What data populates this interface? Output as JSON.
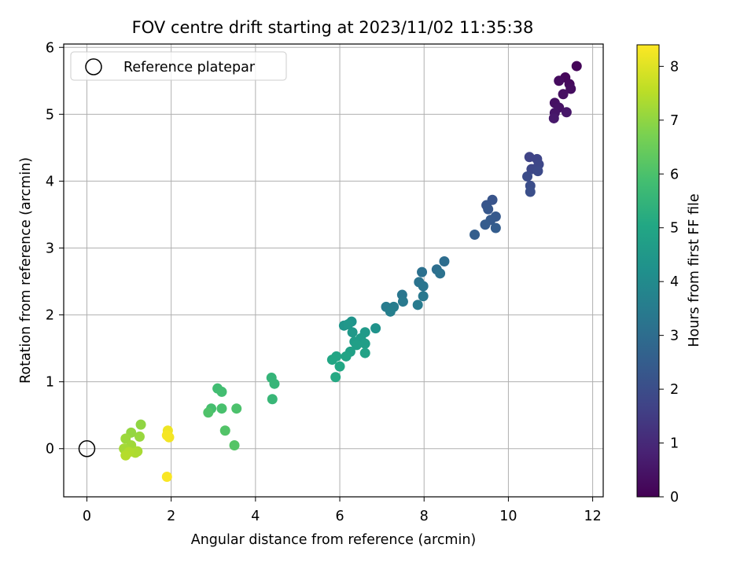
{
  "chart_data": {
    "type": "scatter",
    "title": "FOV centre drift starting at 2023/11/02 11:35:38",
    "xlabel": "Angular distance from reference (arcmin)",
    "ylabel": "Rotation from reference (arcmin)",
    "xlim": [
      -0.55,
      12.25
    ],
    "ylim": [
      -0.72,
      6.05
    ],
    "xticks": [
      0,
      2,
      4,
      6,
      8,
      10,
      12
    ],
    "yticks": [
      0,
      1,
      2,
      3,
      4,
      5,
      6
    ],
    "grid": true,
    "legend": {
      "position": "upper-left",
      "entries": [
        "Reference platepar"
      ]
    },
    "reference_point": {
      "x": 0,
      "y": 0,
      "marker": "open-circle"
    },
    "colorbar": {
      "label": "Hours from first FF file",
      "colormap": "viridis",
      "range": [
        0,
        8.4
      ],
      "ticks": [
        0,
        1,
        2,
        3,
        4,
        5,
        6,
        7,
        8
      ]
    },
    "points": [
      {
        "x": 11.62,
        "y": 5.72,
        "t": 0.1
      },
      {
        "x": 11.35,
        "y": 5.55,
        "t": 0.15
      },
      {
        "x": 11.45,
        "y": 5.45,
        "t": 0.2
      },
      {
        "x": 11.2,
        "y": 5.5,
        "t": 0.25
      },
      {
        "x": 11.48,
        "y": 5.38,
        "t": 0.3
      },
      {
        "x": 11.3,
        "y": 5.3,
        "t": 0.35
      },
      {
        "x": 11.1,
        "y": 5.17,
        "t": 0.4
      },
      {
        "x": 11.2,
        "y": 5.1,
        "t": 0.45
      },
      {
        "x": 11.1,
        "y": 5.02,
        "t": 0.5
      },
      {
        "x": 11.38,
        "y": 5.03,
        "t": 0.55
      },
      {
        "x": 11.08,
        "y": 4.94,
        "t": 0.6
      },
      {
        "x": 10.5,
        "y": 4.36,
        "t": 1.7
      },
      {
        "x": 10.68,
        "y": 4.33,
        "t": 1.75
      },
      {
        "x": 10.72,
        "y": 4.25,
        "t": 1.8
      },
      {
        "x": 10.55,
        "y": 4.18,
        "t": 1.85
      },
      {
        "x": 10.7,
        "y": 4.15,
        "t": 1.9
      },
      {
        "x": 10.45,
        "y": 4.07,
        "t": 1.95
      },
      {
        "x": 10.52,
        "y": 3.93,
        "t": 2.0
      },
      {
        "x": 10.52,
        "y": 3.84,
        "t": 2.05
      },
      {
        "x": 9.62,
        "y": 3.72,
        "t": 2.2
      },
      {
        "x": 9.48,
        "y": 3.64,
        "t": 2.25
      },
      {
        "x": 9.52,
        "y": 3.58,
        "t": 2.3
      },
      {
        "x": 9.7,
        "y": 3.47,
        "t": 2.35
      },
      {
        "x": 9.58,
        "y": 3.42,
        "t": 2.4
      },
      {
        "x": 9.45,
        "y": 3.35,
        "t": 2.45
      },
      {
        "x": 9.7,
        "y": 3.3,
        "t": 2.5
      },
      {
        "x": 9.2,
        "y": 3.2,
        "t": 2.55
      },
      {
        "x": 8.48,
        "y": 2.8,
        "t": 3.0
      },
      {
        "x": 8.3,
        "y": 2.68,
        "t": 3.05
      },
      {
        "x": 7.95,
        "y": 2.64,
        "t": 3.1
      },
      {
        "x": 8.38,
        "y": 2.62,
        "t": 3.15
      },
      {
        "x": 7.88,
        "y": 2.49,
        "t": 3.2
      },
      {
        "x": 7.98,
        "y": 2.43,
        "t": 3.25
      },
      {
        "x": 7.48,
        "y": 2.3,
        "t": 3.3
      },
      {
        "x": 7.98,
        "y": 2.28,
        "t": 3.35
      },
      {
        "x": 7.5,
        "y": 2.2,
        "t": 3.4
      },
      {
        "x": 7.85,
        "y": 2.15,
        "t": 3.45
      },
      {
        "x": 7.1,
        "y": 2.12,
        "t": 3.5
      },
      {
        "x": 7.28,
        "y": 2.12,
        "t": 3.55
      },
      {
        "x": 7.2,
        "y": 2.05,
        "t": 3.6
      },
      {
        "x": 6.85,
        "y": 1.8,
        "t": 4.3
      },
      {
        "x": 6.28,
        "y": 1.9,
        "t": 4.35
      },
      {
        "x": 6.1,
        "y": 1.84,
        "t": 4.4
      },
      {
        "x": 6.2,
        "y": 1.86,
        "t": 4.45
      },
      {
        "x": 6.3,
        "y": 1.74,
        "t": 4.5
      },
      {
        "x": 6.6,
        "y": 1.74,
        "t": 4.55
      },
      {
        "x": 6.5,
        "y": 1.65,
        "t": 4.6
      },
      {
        "x": 6.35,
        "y": 1.6,
        "t": 4.65
      },
      {
        "x": 6.6,
        "y": 1.57,
        "t": 4.7
      },
      {
        "x": 6.4,
        "y": 1.55,
        "t": 4.75
      },
      {
        "x": 6.25,
        "y": 1.45,
        "t": 4.8
      },
      {
        "x": 6.6,
        "y": 1.43,
        "t": 4.85
      },
      {
        "x": 6.15,
        "y": 1.38,
        "t": 4.9
      },
      {
        "x": 5.92,
        "y": 1.38,
        "t": 4.95
      },
      {
        "x": 5.82,
        "y": 1.33,
        "t": 5.0
      },
      {
        "x": 6.0,
        "y": 1.23,
        "t": 5.05
      },
      {
        "x": 5.9,
        "y": 1.07,
        "t": 5.1
      },
      {
        "x": 4.38,
        "y": 1.06,
        "t": 5.5
      },
      {
        "x": 4.45,
        "y": 0.97,
        "t": 5.55
      },
      {
        "x": 4.4,
        "y": 0.74,
        "t": 5.6
      },
      {
        "x": 3.1,
        "y": 0.9,
        "t": 5.8
      },
      {
        "x": 3.2,
        "y": 0.85,
        "t": 5.85
      },
      {
        "x": 2.95,
        "y": 0.6,
        "t": 5.9
      },
      {
        "x": 3.2,
        "y": 0.6,
        "t": 5.95
      },
      {
        "x": 3.55,
        "y": 0.6,
        "t": 6.0
      },
      {
        "x": 2.88,
        "y": 0.54,
        "t": 6.05
      },
      {
        "x": 3.28,
        "y": 0.27,
        "t": 6.1
      },
      {
        "x": 3.5,
        "y": 0.05,
        "t": 6.15
      },
      {
        "x": 1.28,
        "y": 0.36,
        "t": 7.0
      },
      {
        "x": 1.05,
        "y": 0.24,
        "t": 7.05
      },
      {
        "x": 1.25,
        "y": 0.18,
        "t": 7.1
      },
      {
        "x": 0.92,
        "y": 0.15,
        "t": 7.15
      },
      {
        "x": 1.05,
        "y": 0.05,
        "t": 7.2
      },
      {
        "x": 0.88,
        "y": 0.0,
        "t": 7.25
      },
      {
        "x": 1.2,
        "y": -0.04,
        "t": 7.3
      },
      {
        "x": 1.15,
        "y": -0.06,
        "t": 7.35
      },
      {
        "x": 1.0,
        "y": -0.05,
        "t": 7.4
      },
      {
        "x": 0.92,
        "y": -0.1,
        "t": 7.45
      },
      {
        "x": 1.92,
        "y": 0.27,
        "t": 8.2
      },
      {
        "x": 1.95,
        "y": 0.17,
        "t": 8.25
      },
      {
        "x": 1.9,
        "y": 0.2,
        "t": 8.3
      },
      {
        "x": 1.9,
        "y": -0.42,
        "t": 8.35
      }
    ]
  }
}
